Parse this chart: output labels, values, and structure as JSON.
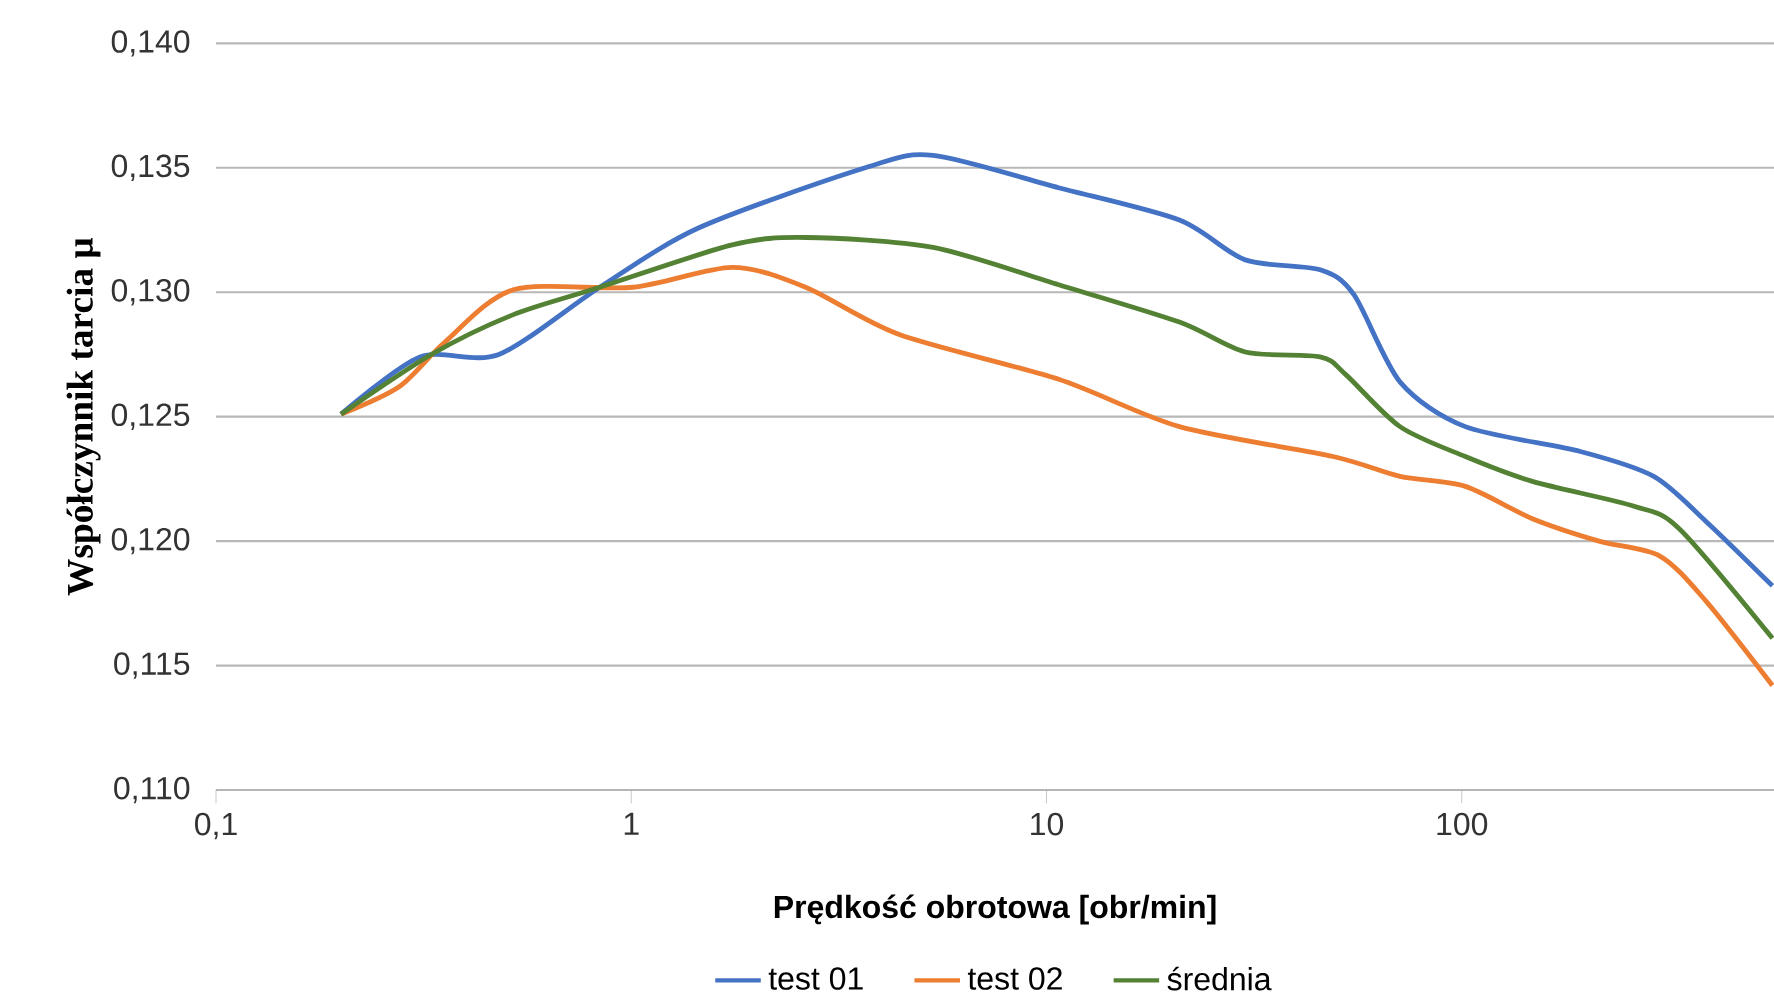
{
  "chart_data": {
    "type": "line",
    "xlabel": "Prędkość obrotowa [obr/min]",
    "ylabel": "Współczynnik tarcia μ",
    "log": "x",
    "grid": "y",
    "legend": "bottom",
    "marker": "none",
    "line_style": "solid",
    "xlim": [
      0.1,
      565
    ],
    "ylim": [
      0.11,
      0.14
    ],
    "xticks": [
      {
        "value": 0.1,
        "label": "0,1"
      },
      {
        "value": 1,
        "label": "1"
      },
      {
        "value": 10,
        "label": "10"
      },
      {
        "value": 100,
        "label": "100"
      }
    ],
    "yticks": [
      {
        "value": 0.11,
        "label": "0,110"
      },
      {
        "value": 0.115,
        "label": "0,115"
      },
      {
        "value": 0.12,
        "label": "0,120"
      },
      {
        "value": 0.125,
        "label": "0,125"
      },
      {
        "value": 0.13,
        "label": "0,130"
      },
      {
        "value": 0.135,
        "label": "0,135"
      },
      {
        "value": 0.14,
        "label": "0,140"
      }
    ],
    "series": [
      {
        "name": "test 01",
        "color": "#4472c4",
        "x": [
          0.2,
          0.31,
          0.48,
          0.84,
          1.46,
          3.66,
          5.33,
          10.7,
          20.9,
          30.1,
          45.6,
          55,
          71,
          102,
          193,
          290,
          387,
          560
        ],
        "values": [
          0.1251,
          0.1274,
          0.1275,
          0.1302,
          0.1326,
          0.135,
          0.1355,
          0.1342,
          0.1329,
          0.1313,
          0.1309,
          0.1299,
          0.1264,
          0.1246,
          0.1236,
          0.1226,
          0.1208,
          0.1182
        ]
      },
      {
        "name": "test 02",
        "color": "#ed7d31",
        "x": [
          0.2,
          0.276,
          0.356,
          0.52,
          1.01,
          1.75,
          2.63,
          4.42,
          10.7,
          20.9,
          49,
          71,
          102,
          148,
          214,
          300,
          387,
          560
        ],
        "values": [
          0.1251,
          0.1262,
          0.128,
          0.1301,
          0.1302,
          0.131,
          0.1302,
          0.1283,
          0.1265,
          0.1246,
          0.1234,
          0.1226,
          0.1222,
          0.1209,
          0.12,
          0.1194,
          0.1176,
          0.1142
        ]
      },
      {
        "name": "średnia",
        "color": "#548235",
        "x": [
          0.2,
          0.33,
          0.52,
          0.84,
          1.75,
          2.63,
          5.33,
          10.7,
          20.9,
          30.1,
          45.6,
          52.5,
          71,
          102,
          148,
          260,
          334,
          560
        ],
        "values": [
          0.1251,
          0.1275,
          0.1291,
          0.1302,
          0.1319,
          0.1322,
          0.1318,
          0.1303,
          0.1288,
          0.1276,
          0.1274,
          0.1267,
          0.1246,
          0.1234,
          0.1224,
          0.1214,
          0.1205,
          0.1161
        ]
      }
    ]
  }
}
